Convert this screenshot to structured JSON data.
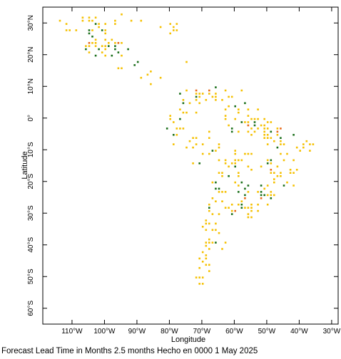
{
  "map": {
    "x_axis_title": "Longitude",
    "y_axis_title": "Latitude",
    "lon_ticks": [
      "110°W",
      "100°W",
      "90°W",
      "80°W",
      "70°W",
      "60°W",
      "50°W",
      "40°W",
      "30°W"
    ],
    "lat_ticks": [
      "30°N",
      "20°N",
      "10°N",
      "0°",
      "10°S",
      "20°S",
      "30°S",
      "40°S",
      "50°S",
      "60°S"
    ],
    "extent": {
      "lon_min": -119,
      "lon_max": -28,
      "lat_min": -65,
      "lat_max": 35
    },
    "colors": {
      "yellow": "#f5c000",
      "green": "#1a6e1a",
      "orange": "#e86a1a"
    },
    "footer": "Forecast Lead Time in Months 2.5 months Hecho en 0000 1 May 2025"
  }
}
